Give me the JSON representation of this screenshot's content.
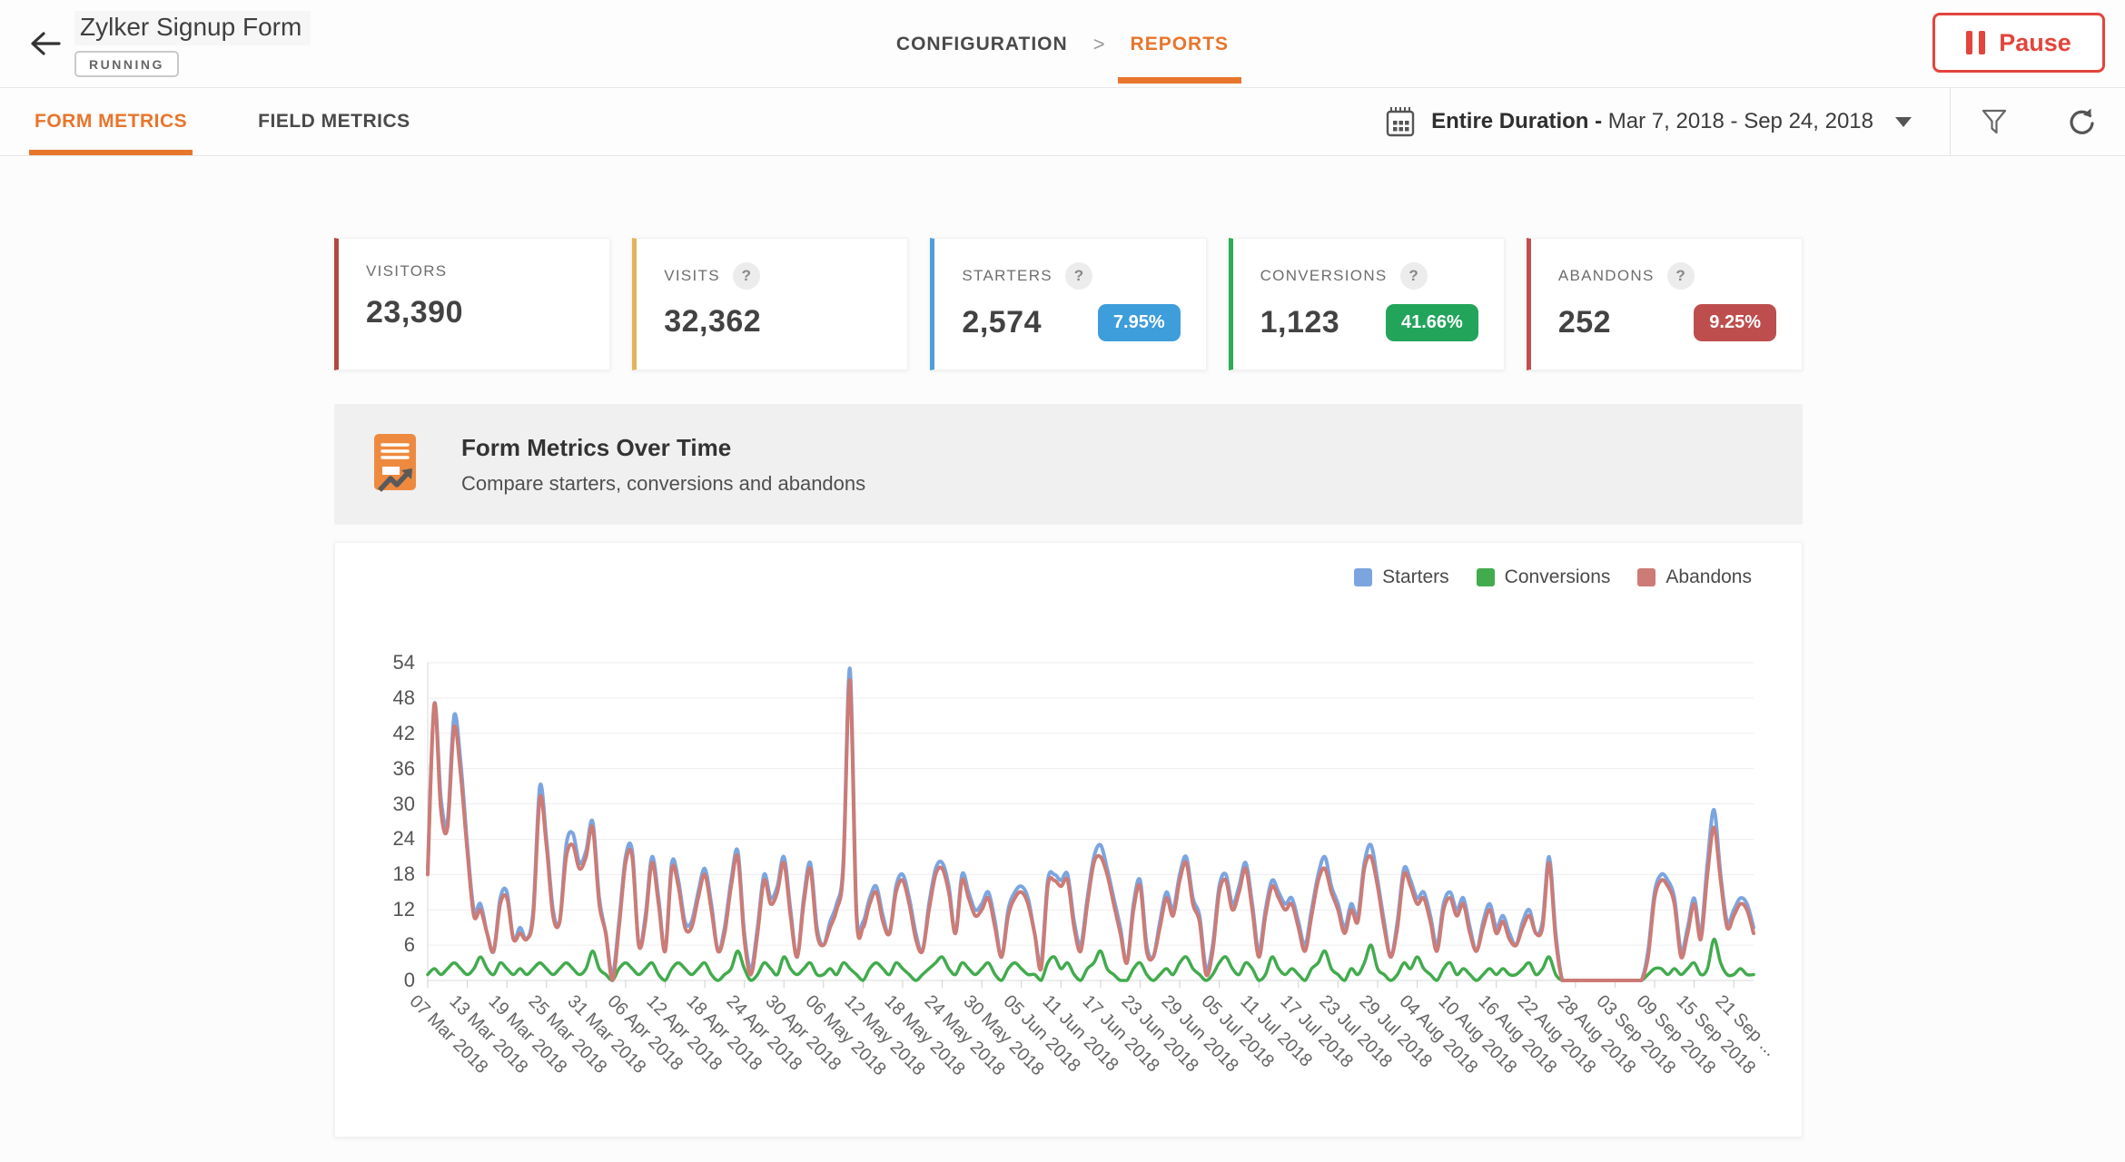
{
  "header": {
    "title": "Zylker Signup Form",
    "status": "RUNNING",
    "breadcrumb_configuration": "CONFIGURATION",
    "breadcrumb_separator": ">",
    "breadcrumb_reports": "REPORTS",
    "pause_label": "Pause",
    "accent_color": "#E8752C",
    "pause_color": "#E2453C"
  },
  "tabs": {
    "form_metrics": "FORM METRICS",
    "field_metrics": "FIELD METRICS"
  },
  "date_filter": {
    "bold": "Entire Duration -",
    "range": "Mar 7, 2018 - Sep 24, 2018"
  },
  "help_glyph": "?",
  "cards": [
    {
      "label": "VISITORS",
      "value": "23,390",
      "color": "#B04A42"
    },
    {
      "label": "VISITS",
      "value": "32,362",
      "color": "#E2B35B"
    },
    {
      "label": "STARTERS",
      "value": "2,574",
      "color": "#4D9FD7",
      "badge": "7.95%",
      "badge_color": "#3E9DDB"
    },
    {
      "label": "CONVERSIONS",
      "value": "1,123",
      "color": "#2BAD52",
      "badge": "41.66%",
      "badge_color": "#22A45B"
    },
    {
      "label": "ABANDONS",
      "value": "252",
      "color": "#C24F4F",
      "badge": "9.25%",
      "badge_color": "#BE4E4E"
    }
  ],
  "section": {
    "title": "Form Metrics Over Time",
    "subtitle": "Compare starters, conversions and abandons"
  },
  "chart_data": {
    "type": "line",
    "title": "Form Metrics Over Time",
    "xlabel": "",
    "ylabel": "",
    "ylim": [
      0,
      54
    ],
    "y_ticks": [
      0,
      6,
      12,
      18,
      24,
      30,
      36,
      42,
      48,
      54
    ],
    "grid": true,
    "legend_position": "top-right",
    "x_label_rotation": 45,
    "x_tick_every": 6,
    "x_tick_labels": [
      "07 Mar 2018",
      "13 Mar 2018",
      "19 Mar 2018",
      "25 Mar 2018",
      "31 Mar 2018",
      "06 Apr 2018",
      "12 Apr 2018",
      "18 Apr 2018",
      "24 Apr 2018",
      "30 Apr 2018",
      "06 May 2018",
      "12 May 2018",
      "18 May 2018",
      "24 May 2018",
      "30 May 2018",
      "05 Jun 2018",
      "11 Jun 2018",
      "17 Jun 2018",
      "23 Jun 2018",
      "29 Jun 2018",
      "05 Jul 2018",
      "11 Jul 2018",
      "17 Jul 2018",
      "23 Jul 2018",
      "29 Jul 2018",
      "04 Aug 2018",
      "10 Aug 2018",
      "16 Aug 2018",
      "22 Aug 2018",
      "28 Aug 2018",
      "03 Sep 2018",
      "09 Sep 2018",
      "15 Sep 2018",
      "21 Sep ..."
    ],
    "series": [
      {
        "name": "Starters",
        "color": "#7CA5E0",
        "values": [
          19,
          47,
          31,
          27,
          45,
          37,
          23,
          12,
          13,
          8,
          5,
          14,
          15,
          7,
          9,
          7,
          12,
          33,
          24,
          12,
          10,
          23,
          25,
          20,
          22,
          27,
          14,
          8,
          1,
          10,
          21,
          22,
          6,
          11,
          21,
          14,
          5,
          20,
          17,
          10,
          10,
          15,
          19,
          13,
          5,
          9,
          17,
          22,
          8,
          2,
          9,
          18,
          14,
          16,
          21,
          12,
          4,
          14,
          20,
          9,
          6,
          10,
          13,
          20,
          53,
          12,
          10,
          14,
          16,
          11,
          8,
          16,
          18,
          14,
          8,
          5,
          13,
          19,
          20,
          16,
          8,
          18,
          15,
          12,
          13,
          15,
          10,
          4,
          12,
          15,
          16,
          14,
          8,
          3,
          17,
          18,
          17,
          18,
          10,
          6,
          14,
          21,
          23,
          19,
          14,
          9,
          3,
          13,
          17,
          6,
          4,
          10,
          15,
          12,
          18,
          21,
          14,
          11,
          2,
          6,
          16,
          18,
          13,
          16,
          20,
          13,
          5,
          12,
          17,
          15,
          13,
          14,
          10,
          6,
          12,
          18,
          21,
          16,
          13,
          9,
          13,
          11,
          20,
          23,
          17,
          10,
          4,
          10,
          19,
          17,
          14,
          15,
          11,
          6,
          13,
          15,
          12,
          14,
          9,
          5,
          10,
          13,
          9,
          11,
          8,
          6,
          10,
          12,
          8,
          10,
          21,
          8,
          0,
          0,
          0,
          0,
          0,
          0,
          0,
          0,
          0,
          0,
          0,
          0,
          0,
          5,
          15,
          18,
          17,
          14,
          5,
          9,
          14,
          8,
          20,
          29,
          18,
          10,
          12,
          14,
          13,
          9
        ]
      },
      {
        "name": "Conversions",
        "color": "#42AB4E",
        "values": [
          1,
          2,
          1,
          2,
          3,
          2,
          1,
          2,
          4,
          2,
          1,
          3,
          2,
          1,
          2,
          1,
          2,
          3,
          2,
          1,
          2,
          3,
          2,
          1,
          2,
          5,
          2,
          1,
          0,
          2,
          3,
          2,
          1,
          2,
          3,
          1,
          0,
          2,
          3,
          2,
          1,
          2,
          3,
          1,
          0,
          1,
          2,
          5,
          2,
          0,
          1,
          3,
          2,
          1,
          4,
          2,
          1,
          2,
          3,
          1,
          1,
          2,
          1,
          3,
          2,
          1,
          0,
          2,
          3,
          2,
          1,
          3,
          2,
          1,
          0,
          1,
          2,
          3,
          4,
          2,
          1,
          3,
          2,
          1,
          2,
          3,
          1,
          0,
          2,
          3,
          2,
          1,
          1,
          0,
          3,
          4,
          2,
          3,
          1,
          0,
          2,
          3,
          5,
          2,
          1,
          0,
          0,
          2,
          3,
          1,
          0,
          1,
          2,
          1,
          3,
          4,
          2,
          1,
          0,
          1,
          3,
          4,
          2,
          1,
          3,
          2,
          0,
          1,
          4,
          2,
          1,
          2,
          1,
          0,
          2,
          3,
          5,
          2,
          1,
          0,
          2,
          1,
          3,
          6,
          2,
          1,
          0,
          1,
          3,
          2,
          4,
          2,
          1,
          0,
          2,
          3,
          1,
          2,
          1,
          0,
          1,
          2,
          1,
          2,
          1,
          1,
          2,
          3,
          1,
          2,
          4,
          1,
          0,
          0,
          0,
          0,
          0,
          0,
          0,
          0,
          0,
          0,
          0,
          0,
          0,
          1,
          2,
          2,
          1,
          2,
          1,
          2,
          3,
          1,
          2,
          7,
          3,
          1,
          1,
          2,
          1,
          1
        ]
      },
      {
        "name": "Abandons",
        "color": "#CC7B76",
        "values": [
          18,
          47,
          29,
          26,
          43,
          35,
          22,
          11,
          12,
          8,
          5,
          13,
          14,
          7,
          8,
          7,
          11,
          31,
          23,
          11,
          10,
          21,
          23,
          19,
          21,
          26,
          13,
          8,
          0,
          9,
          20,
          21,
          6,
          10,
          20,
          13,
          5,
          19,
          16,
          9,
          9,
          14,
          18,
          12,
          5,
          8,
          16,
          21,
          7,
          1,
          8,
          17,
          13,
          15,
          20,
          11,
          4,
          13,
          19,
          8,
          6,
          9,
          12,
          19,
          51,
          11,
          9,
          13,
          15,
          10,
          8,
          15,
          17,
          13,
          7,
          5,
          12,
          18,
          19,
          15,
          8,
          17,
          14,
          11,
          12,
          14,
          9,
          4,
          11,
          14,
          15,
          13,
          8,
          2,
          16,
          17,
          16,
          17,
          9,
          5,
          13,
          20,
          21,
          18,
          13,
          8,
          3,
          12,
          16,
          5,
          4,
          9,
          14,
          11,
          17,
          20,
          13,
          10,
          1,
          5,
          15,
          17,
          12,
          15,
          19,
          12,
          4,
          11,
          16,
          14,
          12,
          13,
          9,
          5,
          11,
          17,
          19,
          15,
          12,
          8,
          12,
          10,
          19,
          21,
          16,
          9,
          4,
          9,
          18,
          16,
          13,
          14,
          10,
          5,
          12,
          14,
          11,
          13,
          8,
          5,
          9,
          12,
          8,
          10,
          7,
          6,
          9,
          11,
          8,
          9,
          20,
          7,
          0,
          0,
          0,
          0,
          0,
          0,
          0,
          0,
          0,
          0,
          0,
          0,
          0,
          4,
          14,
          17,
          16,
          13,
          4,
          8,
          13,
          7,
          18,
          26,
          17,
          9,
          11,
          13,
          12,
          8
        ]
      }
    ]
  }
}
